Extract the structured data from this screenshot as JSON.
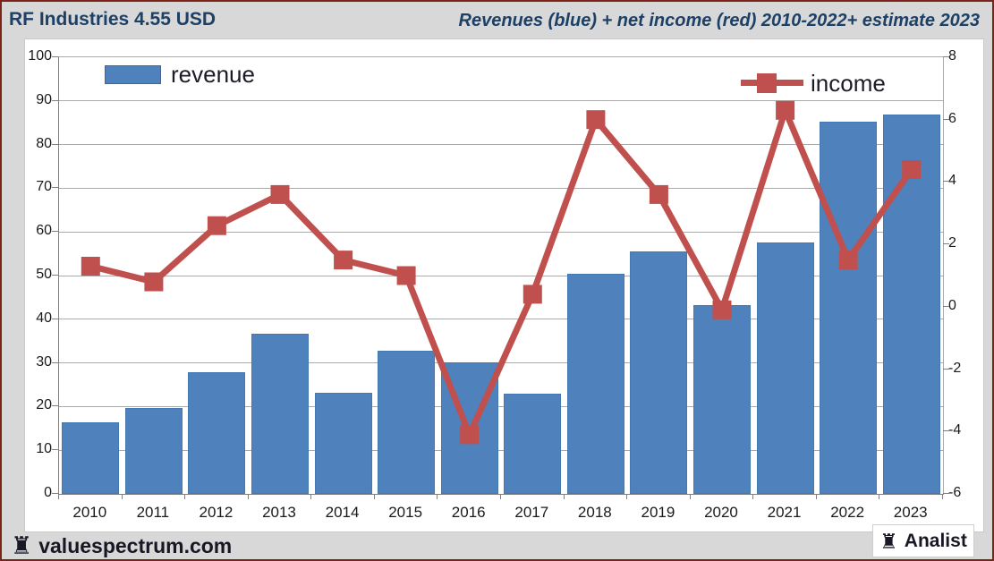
{
  "header": {
    "title": "RF Industries 4.55 USD",
    "subtitle": "Revenues (blue) + net income (red) 2010-2022+ estimate 2023"
  },
  "footer": {
    "brand": "valuespectrum.com",
    "badge": "Analist"
  },
  "icons": {
    "rook_glyph": "♜"
  },
  "colors": {
    "revenue_bar": "#4f81bd",
    "revenue_bar_border": "#4478b0",
    "income_line": "#c0504d",
    "header_text": "#1d4066",
    "background": "#d8d8d8",
    "plot_background": "#ffffff",
    "gridline": "#ababab",
    "axis_line": "#808080",
    "frame_border": "#7d2419",
    "text": "#1a1a1a"
  },
  "chart_data": {
    "type": "bar+line",
    "categories": [
      "2010",
      "2011",
      "2012",
      "2013",
      "2014",
      "2015",
      "2016",
      "2017",
      "2018",
      "2019",
      "2020",
      "2021",
      "2022",
      "2023"
    ],
    "series": [
      {
        "name": "revenue",
        "type": "bar",
        "axis": "left",
        "color": "#4f81bd",
        "values": [
          16.4,
          19.6,
          27.9,
          36.7,
          23.2,
          32.8,
          30.2,
          22.9,
          50.5,
          55.6,
          43.2,
          57.6,
          85.3,
          86.8
        ]
      },
      {
        "name": "income",
        "type": "line",
        "axis": "right",
        "color": "#c0504d",
        "marker": "square",
        "values": [
          1.3,
          0.8,
          2.6,
          3.6,
          1.5,
          1.0,
          -4.1,
          0.4,
          6.0,
          3.6,
          -0.1,
          6.3,
          1.5,
          4.4
        ]
      }
    ],
    "left_axis": {
      "min": 0,
      "max": 100,
      "ticks": [
        0,
        10,
        20,
        30,
        40,
        50,
        60,
        70,
        80,
        90,
        100
      ]
    },
    "right_axis": {
      "min": -6,
      "max": 8,
      "ticks": [
        -6,
        -4,
        -2,
        0,
        2,
        4,
        6,
        8
      ]
    },
    "grid": true,
    "legend_position": "revenue top-left, income top-right"
  }
}
